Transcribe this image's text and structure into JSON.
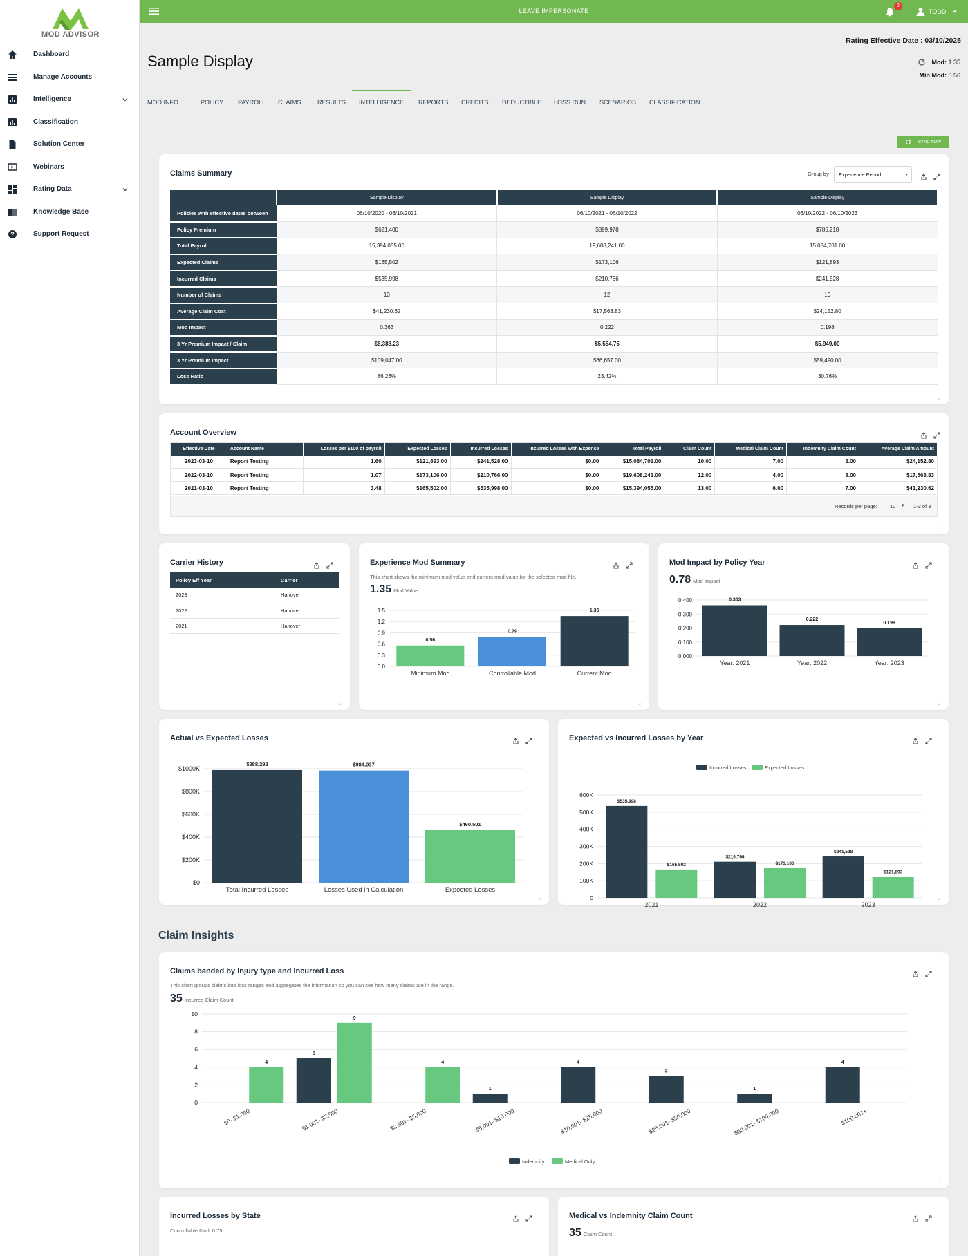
{
  "app": {
    "brand": "MOD ADVISOR"
  },
  "sidebar": {
    "items": [
      {
        "label": "Dashboard",
        "icon": "home-icon"
      },
      {
        "label": "Manage Accounts",
        "icon": "list-icon"
      },
      {
        "label": "Intelligence",
        "icon": "chart-icon",
        "expandable": true
      },
      {
        "label": "Classification",
        "icon": "chart-icon"
      },
      {
        "label": "Solution Center",
        "icon": "document-icon"
      },
      {
        "label": "Webinars",
        "icon": "video-icon"
      },
      {
        "label": "Rating Data",
        "icon": "dashboard-icon",
        "expandable": true
      },
      {
        "label": "Knowledge Base",
        "icon": "book-icon"
      },
      {
        "label": "Support Request",
        "icon": "help-icon"
      }
    ]
  },
  "topbar": {
    "center_text": "LEAVE IMPERSONATE",
    "notification_count": "2",
    "user": "TODD"
  },
  "header": {
    "rating_effective": "Rating Effective Date : 03/10/2025",
    "title": "Sample Display",
    "mod_label": "Mod:",
    "mod_value": "1.35",
    "minmod_label": "Min Mod:",
    "minmod_value": "0.56"
  },
  "tabs": [
    {
      "label": "MOD INFO"
    },
    {
      "label": "POLICY"
    },
    {
      "label": "PAYROLL"
    },
    {
      "label": "CLAIMS"
    },
    {
      "label": "RESULTS"
    },
    {
      "label": "INTELLIGENCE",
      "active": true
    },
    {
      "label": "REPORTS"
    },
    {
      "label": "CREDITS"
    },
    {
      "label": "DEDUCTIBLE"
    },
    {
      "label": "LOSS RUN"
    },
    {
      "label": "SCENARIOS"
    },
    {
      "label": "CLASSIFICATION"
    }
  ],
  "sync_label": "SYNC NOW",
  "claims_summary": {
    "title": "Claims Summary",
    "group_by_label": "Group by",
    "group_by_value": "Experience Period",
    "columns": [
      "Sample Display",
      "Sample Display",
      "Sample Display"
    ],
    "rows": [
      {
        "label": "Policies with effective dates between",
        "values": [
          "06/10/2020 - 06/10/2021",
          "06/10/2021 - 06/10/2022",
          "06/10/2022 - 06/10/2023"
        ]
      },
      {
        "label": "Policy Premium",
        "values": [
          "$621,400",
          "$899,978",
          "$785,218"
        ]
      },
      {
        "label": "Total Payroll",
        "values": [
          "15,394,055.00",
          "19,608,241.00",
          "15,084,701.00"
        ]
      },
      {
        "label": "Expected Claims",
        "values": [
          "$165,502",
          "$173,106",
          "$121,893"
        ]
      },
      {
        "label": "Incurred Claims",
        "values": [
          "$535,998",
          "$210,766",
          "$241,528"
        ]
      },
      {
        "label": "Number of Claims",
        "values": [
          "13",
          "12",
          "10"
        ]
      },
      {
        "label": "Average Claim Cost",
        "values": [
          "$41,230.62",
          "$17,563.83",
          "$24,152.80"
        ]
      },
      {
        "label": "Mod Impact",
        "values": [
          "0.363",
          "0.222",
          "0.198"
        ]
      },
      {
        "label": "3 Yr Premium Impact / Claim",
        "values": [
          "$8,388.23",
          "$5,554.75",
          "$5,949.00"
        ],
        "bold": true
      },
      {
        "label": "3 Yr Premium Impact",
        "values": [
          "$109,047.00",
          "$66,657.00",
          "$59,490.00"
        ]
      },
      {
        "label": "Loss Ratio",
        "values": [
          "86.26%",
          "23.42%",
          "30.76%"
        ]
      }
    ]
  },
  "account_overview": {
    "title": "Account Overview",
    "columns": [
      "Effective Date",
      "Account Name",
      "Losses per $100 of payroll",
      "Expected Losses",
      "Incurred Losses",
      "Incurred Losses with Expense",
      "Total Payroll",
      "Claim Count",
      "Medical Claim Count",
      "Indemnity Claim Count",
      "Average Claim Amount"
    ],
    "rows": [
      [
        "2023-03-10",
        "Report Testing",
        "1.60",
        "$121,893.00",
        "$241,528.00",
        "$0.00",
        "$15,084,701.00",
        "10.00",
        "7.00",
        "3.00",
        "$24,152.80"
      ],
      [
        "2022-03-10",
        "Report Testing",
        "1.07",
        "$173,106.00",
        "$210,766.00",
        "$0.00",
        "$19,608,241.00",
        "12.00",
        "4.00",
        "8.00",
        "$17,563.83"
      ],
      [
        "2021-03-10",
        "Report Testing",
        "3.48",
        "$165,502.00",
        "$535,998.00",
        "$0.00",
        "$15,394,055.00",
        "13.00",
        "6.00",
        "7.00",
        "$41,230.62"
      ]
    ],
    "records_label": "Records per page:",
    "records_value": "10",
    "range": "1-3 of 3"
  },
  "carrier_history": {
    "title": "Carrier History",
    "columns": [
      "Policy Eff Year",
      "Carrier"
    ],
    "rows": [
      [
        "2023",
        "Hanover"
      ],
      [
        "2022",
        "Hanover"
      ],
      [
        "2021",
        "Hanover"
      ]
    ]
  },
  "exp_mod": {
    "title": "Experience Mod Summary",
    "description": "This chart shows the minimum mod value and current mod value for the selected mod file.",
    "big": "1.35",
    "big_label": "Mod Value"
  },
  "mod_impact": {
    "title": "Mod Impact by Policy Year",
    "big": "0.78",
    "big_label": "Mod Impact"
  },
  "actual_expected": {
    "title": "Actual vs Expected Losses"
  },
  "exp_incurred": {
    "title": "Expected vs Incurred Losses by Year"
  },
  "claim_insights": {
    "section_title": "Claim Insights"
  },
  "banded": {
    "title": "Claims banded by Injury type and Incurred Loss",
    "description": "This chart groups claims into loss ranges and aggregates the information so you can see how many claims are in the range.",
    "big": "35",
    "big_label": "Incurred Claim Count"
  },
  "state": {
    "title": "Incurred Losses by State",
    "subtitle": "Controllable Mod: 0.79"
  },
  "med_ind": {
    "title": "Medical vs Indemnity Claim Count",
    "big": "35",
    "big_label": "Claim Count"
  },
  "colors": {
    "dark": "#2b3f4d",
    "green": "#66c97f",
    "blue": "#4a90d9",
    "brand_green": "#71b850"
  },
  "chart_data": [
    {
      "id": "exp_mod",
      "type": "bar",
      "categories": [
        "Minimum Mod",
        "Controllable Mod",
        "Current Mod"
      ],
      "values": [
        0.56,
        0.79,
        1.35
      ],
      "labels": [
        "0.56",
        "0.79",
        "1.35"
      ],
      "colors": [
        "#66c97f",
        "#4a90d9",
        "#2b3f4d"
      ],
      "ylim": [
        0,
        1.5
      ],
      "yticks": [
        "0.0",
        "0.3",
        "0.6",
        "0.9",
        "1.2",
        "1.5"
      ]
    },
    {
      "id": "mod_impact",
      "type": "bar",
      "categories": [
        "Year: 2021",
        "Year: 2022",
        "Year: 2023"
      ],
      "values": [
        0.363,
        0.222,
        0.198
      ],
      "labels": [
        "0.363",
        "0.222",
        "0.198"
      ],
      "colors": [
        "#2b3f4d",
        "#2b3f4d",
        "#2b3f4d"
      ],
      "ylim": [
        0,
        0.4
      ],
      "yticks": [
        "0.000",
        "0.100",
        "0.200",
        "0.300",
        "0.400"
      ]
    },
    {
      "id": "actual_expected",
      "type": "bar",
      "categories": [
        "Total Incurred Losses",
        "Losses Used in Calculation",
        "Expected Losses"
      ],
      "values": [
        988292,
        984037,
        460501
      ],
      "labels": [
        "$988,292",
        "$984,037",
        "$460,501"
      ],
      "colors": [
        "#2b3f4d",
        "#4a90d9",
        "#66c97f"
      ],
      "ylim": [
        0,
        1000000
      ],
      "yticks": [
        "$0",
        "$200K",
        "$400K",
        "$600K",
        "$800K",
        "$1000K"
      ]
    },
    {
      "id": "exp_incurred",
      "type": "bar",
      "categories": [
        "2021",
        "2022",
        "2023"
      ],
      "series": [
        {
          "name": "Incurred Losses",
          "values": [
            535998,
            210766,
            241528
          ],
          "labels": [
            "$535,998",
            "$210,766",
            "$241,528"
          ],
          "color": "#2b3f4d"
        },
        {
          "name": "Expected Losses",
          "values": [
            165502,
            173106,
            121893
          ],
          "labels": [
            "$165,502",
            "$173,106",
            "$121,893"
          ],
          "color": "#66c97f"
        }
      ],
      "ylim": [
        0,
        600000
      ],
      "yticks": [
        "0",
        "100K",
        "200K",
        "300K",
        "400K",
        "500K",
        "600K"
      ]
    },
    {
      "id": "banded",
      "type": "bar",
      "categories": [
        "$0- $1,000",
        "$1,001- $2,500",
        "$2,501- $5,000",
        "$5,001- $10,000",
        "$10,001- $25,000",
        "$25,001- $50,000",
        "$50,001- $100,000",
        "$100,001+"
      ],
      "series": [
        {
          "name": "Indemnity",
          "values": [
            null,
            5,
            null,
            1,
            4,
            3,
            1,
            4
          ],
          "color": "#2b3f4d"
        },
        {
          "name": "Medical Only",
          "values": [
            4,
            9,
            4,
            null,
            null,
            null,
            null,
            null
          ],
          "color": "#66c97f"
        }
      ],
      "ylim": [
        0,
        10
      ],
      "yticks": [
        "0",
        "2",
        "4",
        "6",
        "8",
        "10"
      ]
    }
  ]
}
